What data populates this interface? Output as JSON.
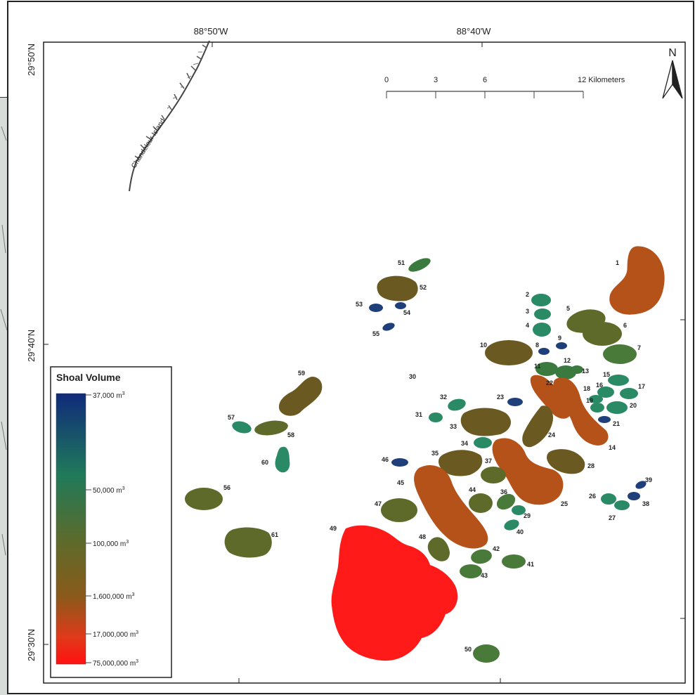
{
  "map": {
    "longitude_labels": [
      "88°50'W",
      "88°40'W"
    ],
    "latitude_labels": [
      "29°50'N",
      "29°40'N",
      "29°30'N"
    ],
    "island_label": "Chandeleur Island",
    "north_label": "N",
    "scale_bar": {
      "ticks": [
        "0",
        "3",
        "6",
        "12 Kilometers"
      ]
    }
  },
  "legend": {
    "title": "Shoal Volume",
    "items": [
      {
        "label": "37,000 m",
        "sup": "3",
        "color": "#1a2a7a"
      },
      {
        "label": "50,000 m",
        "sup": "3",
        "color": "#1f7a5a"
      },
      {
        "label": "100,000 m",
        "sup": "3",
        "color": "#5a6a2a"
      },
      {
        "label": "1,600,000 m",
        "sup": "3",
        "color": "#8a5a1a"
      },
      {
        "label": "17,000,000 m",
        "sup": "3",
        "color": "#d9401a"
      },
      {
        "label": "75,000,000 m",
        "sup": "3",
        "color": "#ff1010"
      }
    ]
  },
  "shoals": [
    {
      "id": "1",
      "color": "#b5521a"
    },
    {
      "id": "2",
      "color": "#2a8a66"
    },
    {
      "id": "3",
      "color": "#2a8a66"
    },
    {
      "id": "4",
      "color": "#2a8a66"
    },
    {
      "id": "5",
      "color": "#5e6a2a"
    },
    {
      "id": "6",
      "color": "#5e6a2a"
    },
    {
      "id": "7",
      "color": "#4a7a3a"
    },
    {
      "id": "8",
      "color": "#1f3f7a"
    },
    {
      "id": "9",
      "color": "#1f3f7a"
    },
    {
      "id": "10",
      "color": "#6a5a22"
    },
    {
      "id": "11",
      "color": "#3a7a3e"
    },
    {
      "id": "12",
      "color": "#3a7a3e"
    },
    {
      "id": "13",
      "color": "#3a7a3e"
    },
    {
      "id": "14",
      "color": "#b5521a"
    },
    {
      "id": "15",
      "color": "#2a8a66"
    },
    {
      "id": "16",
      "color": "#2a8a66"
    },
    {
      "id": "17",
      "color": "#2a8a66"
    },
    {
      "id": "18",
      "color": "#2a8a66"
    },
    {
      "id": "19",
      "color": "#2a8a66"
    },
    {
      "id": "20",
      "color": "#2a8a66"
    },
    {
      "id": "21",
      "color": "#1f3f7a"
    },
    {
      "id": "22",
      "color": "#b5521a"
    },
    {
      "id": "23",
      "color": "#1f3f7a"
    },
    {
      "id": "24",
      "color": "#6a5a22"
    },
    {
      "id": "25",
      "color": "#b5521a"
    },
    {
      "id": "26",
      "color": "#2a8a66"
    },
    {
      "id": "27",
      "color": "#2a8a66"
    },
    {
      "id": "28",
      "color": "#6a5a22"
    },
    {
      "id": "29",
      "color": "#2a8a66"
    },
    {
      "id": "30",
      "color": "#1f3f7a"
    },
    {
      "id": "31",
      "color": "#2a8a66"
    },
    {
      "id": "32",
      "color": "#2a8a66"
    },
    {
      "id": "33",
      "color": "#6a5a22"
    },
    {
      "id": "34",
      "color": "#2a8a66"
    },
    {
      "id": "35",
      "color": "#6a5a22"
    },
    {
      "id": "36",
      "color": "#1f3f7a"
    },
    {
      "id": "37",
      "color": "#5e6a2a"
    },
    {
      "id": "38",
      "color": "#2a8a66"
    },
    {
      "id": "39",
      "color": "#4a7a3a"
    },
    {
      "id": "40",
      "color": "#2a8a66"
    },
    {
      "id": "41",
      "color": "#4a7a3a"
    },
    {
      "id": "42",
      "color": "#4a7a3a"
    },
    {
      "id": "43",
      "color": "#4a7a3a"
    },
    {
      "id": "44",
      "color": "#5e6a2a"
    },
    {
      "id": "45",
      "color": "#b5521a"
    },
    {
      "id": "46",
      "color": "#1f3f7a"
    },
    {
      "id": "47",
      "color": "#5e6a2a"
    },
    {
      "id": "48",
      "color": "#5e6a2a"
    },
    {
      "id": "49",
      "color": "#ff1a1a"
    },
    {
      "id": "50",
      "color": "#4a7a3a"
    },
    {
      "id": "51",
      "color": "#3a7a3e"
    },
    {
      "id": "52",
      "color": "#6a5a22"
    },
    {
      "id": "53",
      "color": "#1f3f7a"
    },
    {
      "id": "54",
      "color": "#1f3f7a"
    },
    {
      "id": "55",
      "color": "#1f3f7a"
    },
    {
      "id": "56",
      "color": "#5e6a2a"
    },
    {
      "id": "57",
      "color": "#2a8a66"
    },
    {
      "id": "58",
      "color": "#5e6a2a"
    },
    {
      "id": "59",
      "color": "#6a5a22"
    },
    {
      "id": "60",
      "color": "#2a8a66"
    },
    {
      "id": "61",
      "color": "#5e6a2a"
    }
  ]
}
